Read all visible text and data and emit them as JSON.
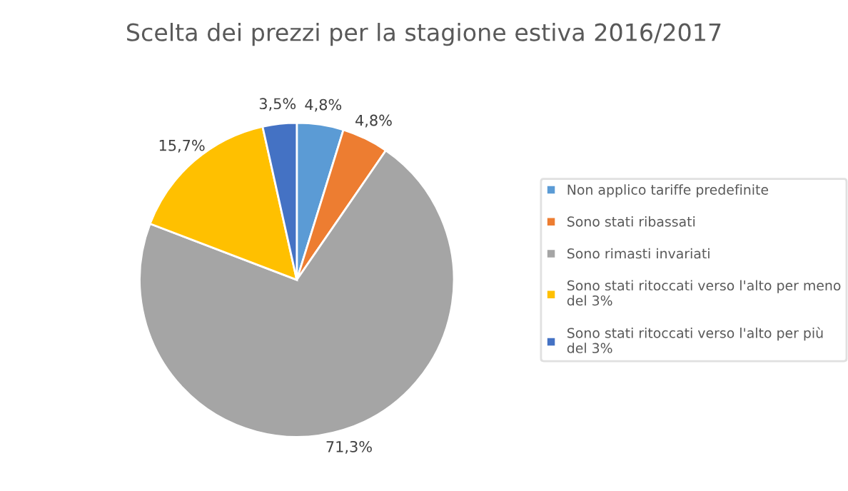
{
  "chart_data": {
    "type": "pie",
    "title": "Scelta dei prezzi per la stagione estiva 2016/2017",
    "categories": [
      "Non applico tariffe predefinite",
      "Sono stati ribassati",
      "Sono rimasti invariati",
      "Sono stati ritoccati verso l'alto per meno del 3%",
      "Sono stati ritoccati verso l'alto per più del 3%"
    ],
    "values": [
      4.8,
      4.8,
      71.3,
      15.7,
      3.5
    ],
    "value_labels": [
      "4,8%",
      "4,8%",
      "71,3%",
      "15,7%",
      "3,5%"
    ],
    "colors": [
      "#5b9bd5",
      "#ed7d31",
      "#a5a5a5",
      "#ffc000",
      "#4472c4"
    ],
    "legend": "right"
  }
}
